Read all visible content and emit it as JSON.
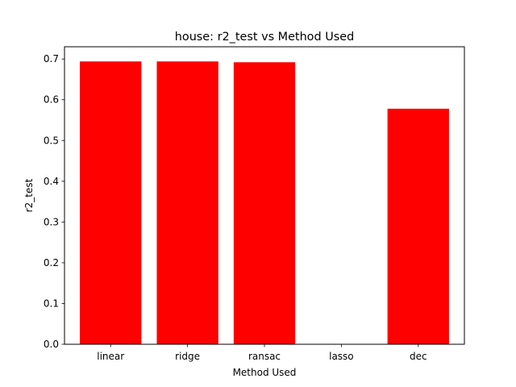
{
  "chart_data": {
    "type": "bar",
    "title": "house: r2_test vs Method Used",
    "xlabel": "Method Used",
    "ylabel": "r2_test",
    "categories": [
      "linear",
      "ridge",
      "ransac",
      "lasso",
      "dec"
    ],
    "values": [
      0.694,
      0.694,
      0.692,
      0.0,
      0.578
    ],
    "ylim": [
      0,
      0.73
    ],
    "yticks": [
      0.0,
      0.1,
      0.2,
      0.3,
      0.4,
      0.5,
      0.6,
      0.7
    ],
    "ytick_labels": [
      "0.0",
      "0.1",
      "0.2",
      "0.3",
      "0.4",
      "0.5",
      "0.6",
      "0.7"
    ],
    "bar_color": "#ff0000",
    "grid": false,
    "legend": "none"
  }
}
